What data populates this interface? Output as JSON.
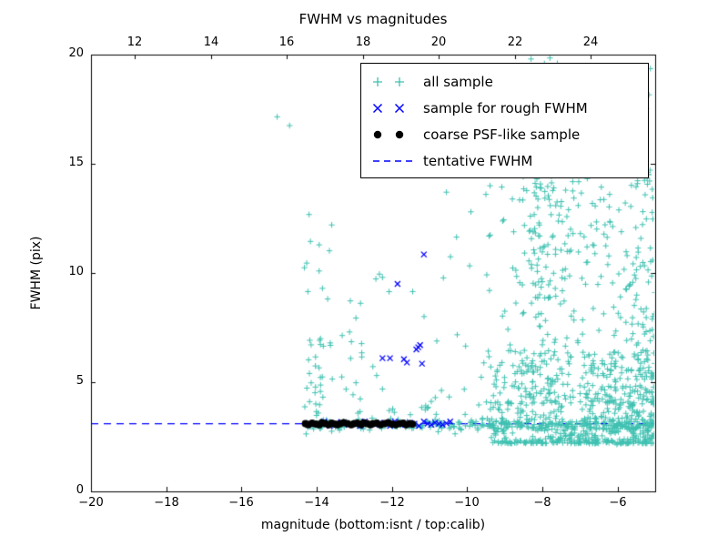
{
  "chart_data": {
    "type": "scatter",
    "title": "FWHM vs magnitudes",
    "xlabel": "magnitude (bottom:isnt / top:calib)",
    "ylabel": "FWHM (pix)",
    "xlim": [
      -20,
      -5
    ],
    "ylim": [
      0,
      20
    ],
    "top_lim": [
      10.85,
      25.7
    ],
    "x_tick_values": [
      -20,
      -18,
      -16,
      -14,
      -12,
      -10,
      -8,
      -6
    ],
    "x_tick_labels": [
      "−20",
      "−18",
      "−16",
      "−14",
      "−12",
      "−10",
      "−8",
      "−6"
    ],
    "y_tick_values": [
      0,
      5,
      10,
      15,
      20
    ],
    "y_tick_labels": [
      "0",
      "5",
      "10",
      "15",
      "20"
    ],
    "top_tick_values": [
      12,
      14,
      16,
      18,
      20,
      22,
      24
    ],
    "top_tick_labels": [
      "12",
      "14",
      "16",
      "18",
      "20",
      "22",
      "24"
    ],
    "grid": false,
    "legend_position": "upper center-right",
    "tentative_fwhm": 3.1,
    "seed": 42,
    "axis_color": "#000000",
    "legend": [
      {
        "label": "all sample",
        "marker": "plus",
        "color": "#3fc1b1"
      },
      {
        "label": "sample for rough FWHM",
        "marker": "x",
        "color": "#0000ff"
      },
      {
        "label": "coarse PSF-like sample",
        "marker": "dot",
        "color": "#000000"
      },
      {
        "label": "tentative FWHM",
        "marker": "dashed",
        "color": "#0000ff"
      }
    ],
    "series": [
      {
        "name": "all sample",
        "marker": "plus",
        "color": "#3fc1b1",
        "points": [
          [
            -15.05,
            17.15
          ],
          [
            -14.72,
            16.75
          ],
          [
            -13.6,
            12.2
          ],
          [
            -12.25,
            9.8
          ],
          [
            -10.55,
            13.7
          ],
          [
            -10.0,
            14.9
          ],
          [
            -9.9,
            12.8
          ],
          [
            -9.3,
            14.8
          ],
          [
            -9.5,
            13.6
          ],
          [
            -8.3,
            19.8
          ],
          [
            -7.6,
            19.6
          ],
          [
            -6.2,
            19.3
          ]
        ],
        "clusters": [
          {
            "count": 260,
            "x": {
              "dist": "power",
              "min": -14.4,
              "max": -5.0,
              "exp": 0.75
            },
            "y": {
              "dist": "normal",
              "mean": 3.05,
              "sd": 0.13
            }
          },
          {
            "count": 45,
            "x": {
              "dist": "uniform",
              "min": -9.6,
              "max": -5.0
            },
            "y": {
              "dist": "normal",
              "mean": 3.1,
              "sd": 0.5
            }
          },
          {
            "count": 30,
            "x": {
              "dist": "normal",
              "mean": -14.1,
              "sd": 0.13
            },
            "y": {
              "dist": "power",
              "min": 2.6,
              "max": 7.0,
              "exp": 1.6
            }
          },
          {
            "count": 10,
            "x": {
              "dist": "uniform",
              "min": -14.35,
              "max": -13.5
            },
            "y": {
              "dist": "uniform",
              "min": 7.0,
              "max": 13.5
            }
          },
          {
            "count": 28,
            "x": {
              "dist": "uniform",
              "min": -13.9,
              "max": -12.8
            },
            "y": {
              "dist": "power",
              "min": 2.7,
              "max": 9.0,
              "exp": 2.0
            }
          },
          {
            "count": 26,
            "x": {
              "dist": "uniform",
              "min": -12.9,
              "max": -10.4
            },
            "y": {
              "dist": "power",
              "min": 3.5,
              "max": 10.5,
              "exp": 2.0
            }
          },
          {
            "count": 12,
            "x": {
              "dist": "uniform",
              "min": -10.5,
              "max": -9.6
            },
            "y": {
              "dist": "power",
              "min": 2.6,
              "max": 13.0,
              "exp": 2.2
            }
          },
          {
            "count": 520,
            "x": {
              "dist": "power",
              "min": -9.7,
              "max": -5.0,
              "exp": 0.7
            },
            "y": {
              "dist": "power",
              "min": 2.2,
              "max": 6.5,
              "exp": 2.2
            }
          },
          {
            "count": 260,
            "x": {
              "dist": "power",
              "min": -9.5,
              "max": -5.0,
              "exp": 0.8
            },
            "y": {
              "dist": "power",
              "min": 4.0,
              "max": 14.0,
              "exp": 1.8
            }
          },
          {
            "count": 130,
            "x": {
              "dist": "uniform",
              "min": -8.8,
              "max": -5.0
            },
            "y": {
              "dist": "uniform",
              "min": 9.0,
              "max": 19.5
            }
          },
          {
            "count": 90,
            "x": {
              "dist": "normal",
              "mean": -8.0,
              "sd": 0.22
            },
            "y": {
              "dist": "uniform",
              "min": 4.0,
              "max": 20.0
            }
          },
          {
            "count": 60,
            "x": {
              "dist": "uniform",
              "min": -5.6,
              "max": -5.0
            },
            "y": {
              "dist": "power",
              "min": 2.3,
              "max": 16.0,
              "exp": 1.5
            }
          }
        ]
      },
      {
        "name": "sample for rough FWHM",
        "marker": "x",
        "color": "#0000ff",
        "points": [
          [
            -14.15,
            3.1
          ],
          [
            -13.95,
            3.05
          ],
          [
            -13.8,
            3.2
          ],
          [
            -13.65,
            3.0
          ],
          [
            -13.5,
            3.12
          ],
          [
            -13.35,
            3.18
          ],
          [
            -13.15,
            3.05
          ],
          [
            -13.0,
            3.1
          ],
          [
            -12.85,
            3.0
          ],
          [
            -12.72,
            3.2
          ],
          [
            -12.6,
            3.1
          ],
          [
            -12.45,
            3.05
          ],
          [
            -12.32,
            3.15
          ],
          [
            -12.18,
            3.1
          ],
          [
            -12.05,
            3.0
          ],
          [
            -11.92,
            3.2
          ],
          [
            -11.78,
            3.1
          ],
          [
            -11.65,
            3.05
          ],
          [
            -11.52,
            3.15
          ],
          [
            -11.4,
            3.1
          ],
          [
            -11.28,
            3.0
          ],
          [
            -11.15,
            3.2
          ],
          [
            -11.05,
            3.1
          ],
          [
            -10.95,
            3.05
          ],
          [
            -10.85,
            3.15
          ],
          [
            -10.75,
            3.1
          ],
          [
            -10.65,
            3.05
          ],
          [
            -10.55,
            3.12
          ],
          [
            -10.45,
            3.2
          ],
          [
            -12.25,
            6.1
          ],
          [
            -12.05,
            6.1
          ],
          [
            -11.68,
            6.05
          ],
          [
            -11.6,
            5.9
          ],
          [
            -11.35,
            6.5
          ],
          [
            -11.3,
            6.6
          ],
          [
            -11.25,
            6.7
          ],
          [
            -11.2,
            5.85
          ],
          [
            -11.85,
            9.5
          ],
          [
            -11.15,
            10.85
          ]
        ]
      },
      {
        "name": "coarse PSF-like sample",
        "marker": "dot",
        "color": "#000000",
        "points": [
          [
            -14.3,
            3.1
          ],
          [
            -14.22,
            3.05
          ],
          [
            -14.12,
            3.12
          ],
          [
            -14.02,
            3.08
          ],
          [
            -13.93,
            3.05
          ],
          [
            -13.86,
            3.15
          ],
          [
            -13.77,
            3.1
          ],
          [
            -13.68,
            3.05
          ],
          [
            -13.6,
            3.12
          ],
          [
            -13.52,
            3.08
          ],
          [
            -13.45,
            3.05
          ],
          [
            -13.37,
            3.1
          ],
          [
            -13.28,
            3.15
          ],
          [
            -13.18,
            3.1
          ],
          [
            -13.08,
            3.05
          ],
          [
            -13.0,
            3.1
          ],
          [
            -12.92,
            3.12
          ],
          [
            -12.82,
            3.05
          ],
          [
            -12.75,
            3.15
          ],
          [
            -12.66,
            3.1
          ],
          [
            -12.57,
            3.05
          ],
          [
            -12.5,
            3.1
          ],
          [
            -12.4,
            3.12
          ],
          [
            -12.3,
            3.05
          ],
          [
            -12.2,
            3.1
          ],
          [
            -12.1,
            3.15
          ],
          [
            -12.0,
            3.08
          ],
          [
            -11.9,
            3.05
          ],
          [
            -11.8,
            3.1
          ],
          [
            -11.7,
            3.12
          ],
          [
            -11.62,
            3.05
          ],
          [
            -11.52,
            3.1
          ],
          [
            -11.45,
            3.08
          ]
        ]
      },
      {
        "name": "tentative FWHM",
        "marker": "dashed",
        "color": "#0000ff",
        "line_y": 3.1
      }
    ]
  }
}
